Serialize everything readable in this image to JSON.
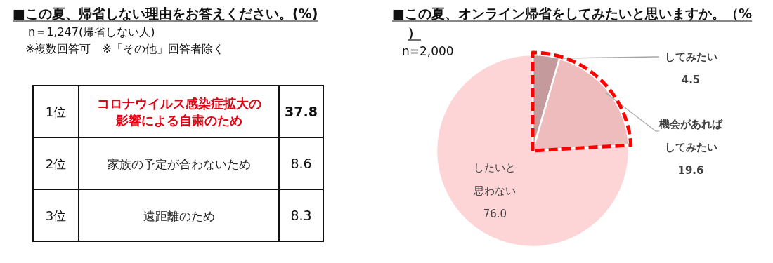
{
  "chart_data": [
    {
      "type": "other",
      "title": "■この夏、帰省しない理由をお答えください。(%)",
      "subtitle": "n＝1,247(帰省しない人)",
      "annotations": [
        "※複数回答可　※「その他」回答者除く"
      ],
      "y_categories": [
        "1位",
        "2位",
        "3位"
      ],
      "categories": [
        "コロナウイルス感染症拡大の影響による自粛のため",
        "家族の予定が合わないため",
        "遠距離のため"
      ],
      "values": [
        37.8,
        8.6,
        8.3
      ],
      "colors": [
        "#e60012",
        "#222222",
        "#222222"
      ],
      "data_labels": true
    },
    {
      "type": "pie",
      "title": "■この夏、オンライン帰省をしてみたいと思いますか。（%）",
      "subtitle": "n=2,000",
      "categories": [
        "してみたい",
        "機会があればしてみたい",
        "したいと思わない"
      ],
      "values": [
        4.5,
        19.6,
        76.0
      ],
      "value_labels": [
        "4.5",
        "19.6",
        "76.0"
      ],
      "colors": [
        "#c49a9c",
        "#eebcbc",
        "#fdd5d7"
      ]
    }
  ]
}
